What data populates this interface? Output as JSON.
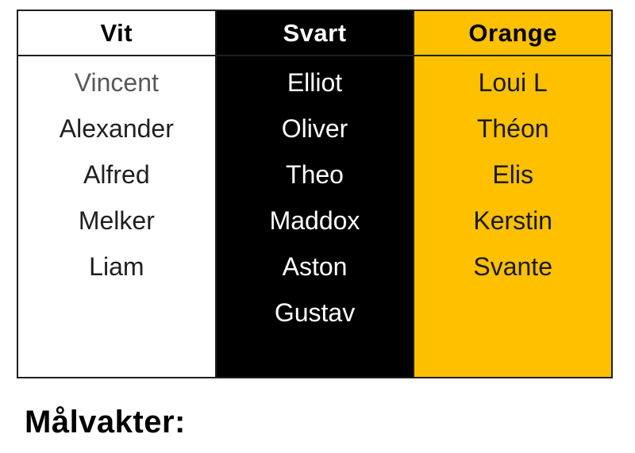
{
  "colors": {
    "page_background": "#ffffff",
    "border": "#1f1f1f",
    "vit_background": "#ffffff",
    "vit_header_text": "#000000",
    "vit_name_text": "#1f1f1f",
    "vit_muted_name_text": "#595959",
    "svart_background": "#000000",
    "svart_header_text": "#ffffff",
    "svart_name_text": "#ffffff",
    "orange_background": "#ffc000",
    "orange_header_text": "#000000",
    "orange_name_text": "#1a1a1a",
    "footer_text": "#000000"
  },
  "table": {
    "columns": [
      {
        "id": "vit",
        "header": "Vit",
        "names": [
          "Vincent",
          "Alexander",
          "Alfred",
          "Melker",
          "Liam"
        ]
      },
      {
        "id": "svart",
        "header": "Svart",
        "names": [
          "Elliot",
          "Oliver",
          "Theo",
          "Maddox",
          "Aston",
          "Gustav"
        ]
      },
      {
        "id": "orange",
        "header": "Orange",
        "names": [
          "Loui L",
          "Théon",
          "Elis",
          "Kerstin",
          "Svante"
        ]
      }
    ]
  },
  "footer": {
    "goalkeepers_label": "Målvakter:"
  }
}
